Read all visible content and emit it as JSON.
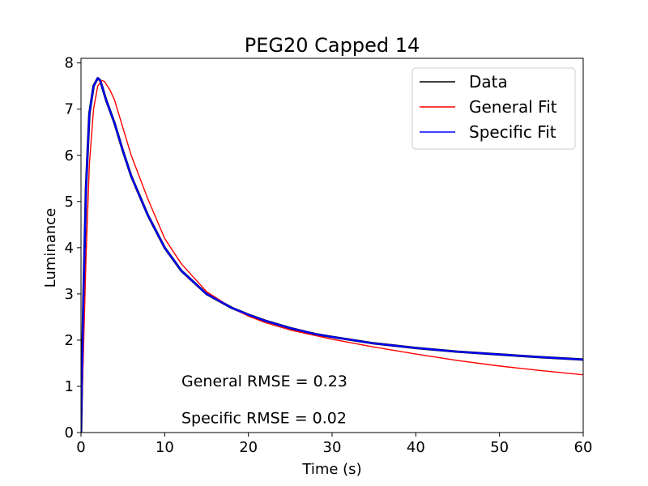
{
  "chart_data": {
    "type": "line",
    "title": "PEG20 Capped 14",
    "xlabel": "Time (s)",
    "ylabel": "Luminance",
    "xlim": [
      0,
      60
    ],
    "ylim": [
      0,
      8.1
    ],
    "x_ticks": [
      0,
      10,
      20,
      30,
      40,
      50,
      60
    ],
    "y_ticks": [
      0,
      1,
      2,
      3,
      4,
      5,
      6,
      7,
      8
    ],
    "grid": false,
    "legend_position": "top-right",
    "series": [
      {
        "name": "Data",
        "color": "#000000",
        "x": [
          0,
          0.3,
          0.6,
          1.0,
          1.5,
          2.0,
          2.3,
          3.0,
          4.0,
          5.0,
          6.0,
          8.0,
          10.0,
          12.0,
          15.0,
          18.0,
          20.0,
          22.0,
          25.0,
          28.0,
          30.0,
          35.0,
          40.0,
          45.0,
          50.0,
          55.0,
          60.0
        ],
        "y": [
          0,
          3.0,
          5.3,
          6.9,
          7.5,
          7.67,
          7.62,
          7.2,
          6.7,
          6.1,
          5.55,
          4.7,
          4.0,
          3.5,
          3.0,
          2.7,
          2.55,
          2.42,
          2.26,
          2.13,
          2.07,
          1.93,
          1.83,
          1.75,
          1.69,
          1.63,
          1.58
        ]
      },
      {
        "name": "General Fit",
        "color": "#ff0000",
        "x": [
          0,
          0.3,
          0.6,
          1.0,
          1.5,
          2.0,
          2.5,
          2.8,
          3.5,
          4.0,
          5.0,
          6.0,
          8.0,
          10.0,
          12.0,
          15.0,
          18.0,
          20.0,
          22.0,
          25.0,
          30.0,
          35.0,
          40.0,
          45.0,
          50.0,
          55.0,
          60.0
        ],
        "y": [
          0,
          1.8,
          3.8,
          5.8,
          7.0,
          7.5,
          7.62,
          7.6,
          7.4,
          7.2,
          6.6,
          6.0,
          5.05,
          4.2,
          3.65,
          3.05,
          2.7,
          2.52,
          2.38,
          2.22,
          2.02,
          1.85,
          1.7,
          1.56,
          1.44,
          1.34,
          1.25
        ]
      },
      {
        "name": "Specific Fit",
        "color": "#0000ff",
        "x": [
          0,
          0.3,
          0.6,
          1.0,
          1.5,
          2.0,
          2.3,
          3.0,
          4.0,
          5.0,
          6.0,
          8.0,
          10.0,
          12.0,
          15.0,
          18.0,
          20.0,
          22.0,
          25.0,
          28.0,
          30.0,
          35.0,
          40.0,
          45.0,
          50.0,
          55.0,
          60.0
        ],
        "y": [
          0,
          3.0,
          5.3,
          6.9,
          7.5,
          7.67,
          7.62,
          7.2,
          6.7,
          6.1,
          5.55,
          4.7,
          4.0,
          3.5,
          3.0,
          2.7,
          2.55,
          2.42,
          2.26,
          2.13,
          2.07,
          1.93,
          1.83,
          1.75,
          1.69,
          1.63,
          1.58
        ]
      }
    ],
    "annotations": [
      {
        "text": "General RMSE = 0.23",
        "x": 12,
        "y": 1.0
      },
      {
        "text": "Specific RMSE = 0.02",
        "x": 12,
        "y": 0.2
      }
    ]
  }
}
